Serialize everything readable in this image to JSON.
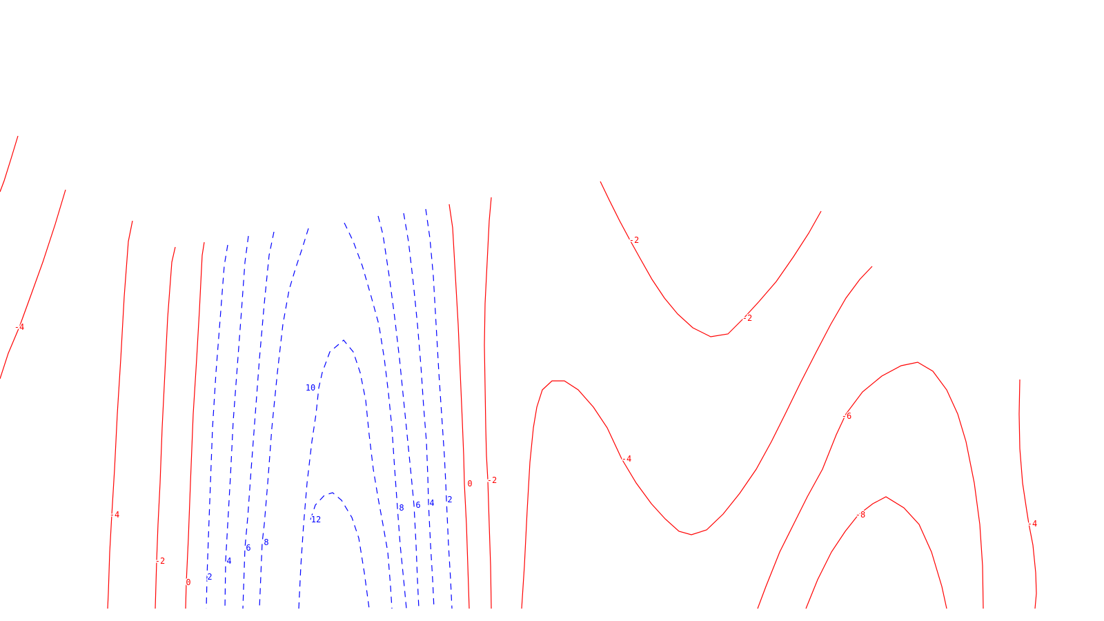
{
  "chart_data": {
    "type": "contour",
    "title": "",
    "xlabel": "",
    "ylabel": "",
    "grid": false,
    "legend": "none",
    "colors": {
      "positive": "#0000ff",
      "negative_or_zero": "#ff0000"
    },
    "line_styles": {
      "positive": "dashed",
      "negative_or_zero": "solid"
    },
    "contour_levels": [
      -8,
      -6,
      -4,
      -2,
      0,
      2,
      4,
      6,
      8,
      10,
      12
    ],
    "labels": [
      {
        "text": "-4"
      },
      {
        "text": "-4"
      },
      {
        "text": "-2"
      },
      {
        "text": "0"
      },
      {
        "text": "2"
      },
      {
        "text": "4"
      },
      {
        "text": "6"
      },
      {
        "text": "8"
      },
      {
        "text": "10"
      },
      {
        "text": "12"
      },
      {
        "text": "8"
      },
      {
        "text": "6"
      },
      {
        "text": "4"
      },
      {
        "text": "2"
      },
      {
        "text": "0"
      },
      {
        "text": "-2"
      },
      {
        "text": "-2"
      },
      {
        "text": "-2"
      },
      {
        "text": "-4"
      },
      {
        "text": "-6"
      },
      {
        "text": "-8"
      },
      {
        "text": "-4"
      }
    ]
  }
}
